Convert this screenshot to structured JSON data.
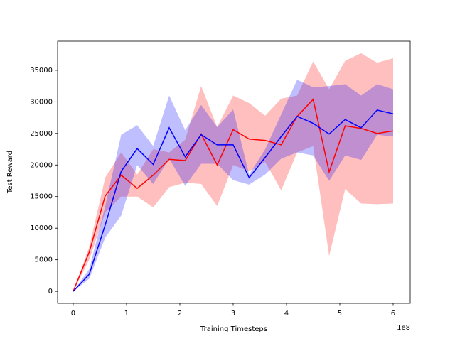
{
  "chart_data": {
    "type": "line",
    "xlabel": "Training Timesteps",
    "ylabel": "Test Reward",
    "x_offset_label": "1e8",
    "x": [
      0,
      0.3,
      0.6,
      0.9,
      1.2,
      1.5,
      1.8,
      2.1,
      2.4,
      2.7,
      3.0,
      3.3,
      3.6,
      3.9,
      4.2,
      4.5,
      4.8,
      5.1,
      5.4,
      5.7,
      6.0
    ],
    "series": [
      {
        "name": "red",
        "color": "#ff0000",
        "values": [
          0,
          6200,
          15100,
          18400,
          16300,
          18400,
          20900,
          20700,
          24900,
          20000,
          25600,
          24100,
          23900,
          23200,
          27700,
          30400,
          18900,
          26200,
          25800,
          25000,
          25400
        ],
        "upper": [
          0,
          7000,
          18000,
          22000,
          18500,
          22500,
          22000,
          24000,
          32500,
          26000,
          31000,
          29800,
          27800,
          30500,
          31000,
          36400,
          32000,
          36500,
          37700,
          36200,
          36900
        ],
        "lower": [
          0,
          5000,
          12500,
          15000,
          15000,
          13300,
          16500,
          17200,
          17000,
          13500,
          20000,
          19000,
          20500,
          16000,
          22000,
          23000,
          5600,
          16200,
          13900,
          13800,
          13900
        ]
      },
      {
        "name": "blue",
        "color": "#0000ff",
        "values": [
          0,
          2700,
          10500,
          19000,
          22600,
          20100,
          25900,
          21300,
          24800,
          23200,
          23200,
          18000,
          21200,
          24500,
          27700,
          26600,
          24900,
          27200,
          25900,
          28700,
          28100
        ],
        "upper": [
          0,
          3500,
          13500,
          24800,
          26300,
          23000,
          31000,
          25500,
          29500,
          26000,
          28800,
          18500,
          22500,
          28000,
          33500,
          32300,
          32500,
          32800,
          31000,
          32800,
          32000
        ],
        "lower": [
          0,
          2000,
          8500,
          12000,
          20000,
          17000,
          21000,
          16700,
          20200,
          20200,
          17600,
          16900,
          18500,
          21000,
          22000,
          21500,
          17500,
          21500,
          20800,
          24800,
          24500
        ]
      }
    ],
    "band_opacity": 0.25,
    "xlim": [
      -0.293,
      6.32
    ],
    "ylim": [
      -1900,
      39600
    ],
    "xticks": [
      0,
      1,
      2,
      3,
      4,
      5,
      6
    ],
    "yticks": [
      0,
      5000,
      10000,
      15000,
      20000,
      25000,
      30000,
      35000
    ]
  }
}
